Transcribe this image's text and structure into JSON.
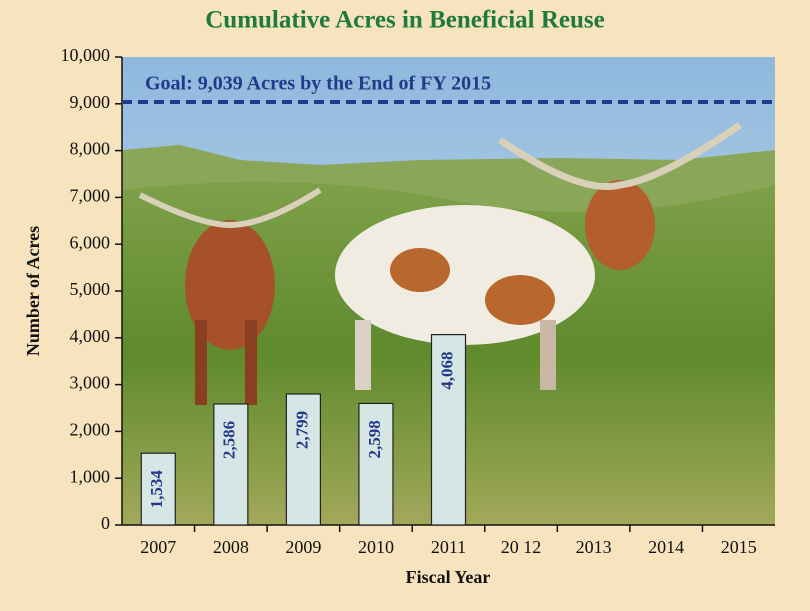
{
  "chart_data": {
    "type": "bar",
    "title": "Cumulative Acres in Beneficial Reuse",
    "xlabel": "Fiscal Year",
    "ylabel": "Number of Acres",
    "categories": [
      "2007",
      "2008",
      "2009",
      "2010",
      "2011",
      "20 12",
      "2013",
      "2014",
      "2015"
    ],
    "values": [
      1534,
      2586,
      2799,
      2598,
      4068,
      null,
      null,
      null,
      null
    ],
    "value_labels": [
      "1,534",
      "2,586",
      "2,799",
      "2,598",
      "4,068",
      null,
      null,
      null,
      null
    ],
    "color": "#d6e6e4",
    "ylim": [
      0,
      10000
    ],
    "yticks": [
      0,
      {
        "value": 1000,
        "label": "1,000"
      },
      {
        "value": 2000,
        "label": "2,000"
      },
      {
        "value": 3000,
        "label": "3,000"
      },
      {
        "value": 4000,
        "label": "4,000"
      },
      {
        "value": 5000,
        "label": "5,000"
      },
      {
        "value": 6000,
        "label": "6,000"
      },
      {
        "value": 7000,
        "label": "7,000"
      },
      {
        "value": 8000,
        "label": "8,000"
      },
      {
        "value": 9000,
        "label": "9,000"
      },
      {
        "value": 10000,
        "label": "10,000"
      }
    ],
    "goal": {
      "value": 9039,
      "label": "Goal: 9,039 Acres by the End of FY 2015",
      "color": "#233a8a"
    }
  }
}
